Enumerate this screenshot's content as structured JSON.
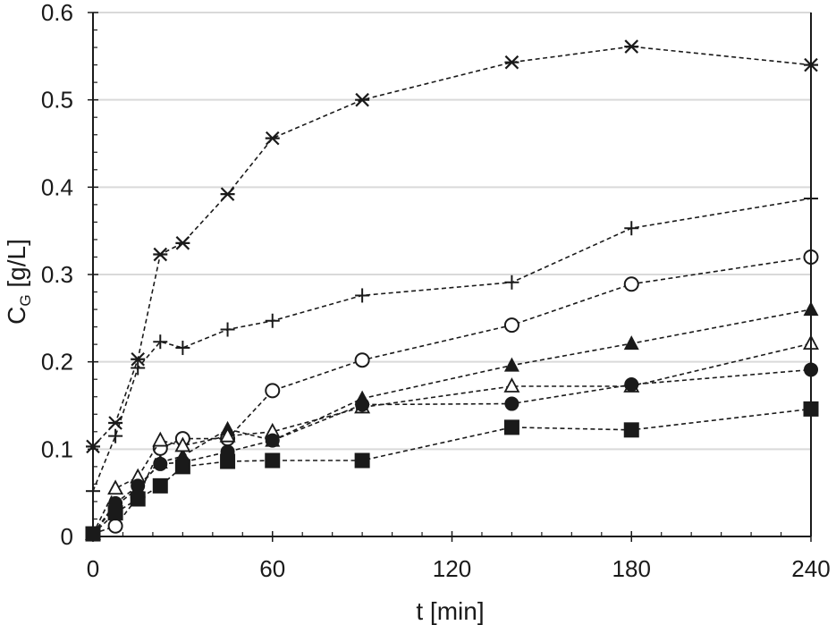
{
  "chart_data": {
    "type": "line",
    "title": "",
    "xlabel": "t [min]",
    "ylabel": {
      "main": "C",
      "sub": "G",
      "unit": " [g/L]"
    },
    "xlim": [
      0,
      240
    ],
    "ylim": [
      0,
      0.6
    ],
    "xticks": [
      0,
      60,
      120,
      180,
      240
    ],
    "xtick_labels": [
      "0",
      "60",
      "120",
      "180",
      "240"
    ],
    "yticks": [
      0,
      0.1,
      0.2,
      0.3,
      0.4,
      0.5,
      0.6
    ],
    "ytick_labels": [
      "0",
      "0.1",
      "0.2",
      "0.3",
      "0.4",
      "0.5",
      "0.6"
    ],
    "grid": "horizontal",
    "line_style": "dashed",
    "colors": {
      "line": "#1a1a1a",
      "grid": "#d9d9d9",
      "axis": "#1a1a1a"
    },
    "series": [
      {
        "name": "asterisk",
        "marker": "asterisk",
        "x": [
          0,
          7.5,
          15,
          22.5,
          30,
          45,
          60,
          90,
          140,
          180,
          240
        ],
        "y": [
          0.103,
          0.13,
          0.203,
          0.323,
          0.336,
          0.392,
          0.456,
          0.5,
          0.543,
          0.561,
          0.54
        ]
      },
      {
        "name": "plus",
        "marker": "plus",
        "x": [
          0,
          7.5,
          15,
          22.5,
          30,
          45,
          60,
          90,
          140,
          180,
          240
        ],
        "y": [
          0.052,
          0.115,
          0.193,
          0.223,
          0.216,
          0.237,
          0.247,
          0.276,
          0.291,
          0.353,
          0.387
        ]
      },
      {
        "name": "open circle",
        "marker": "circle-open",
        "x": [
          0,
          7.5,
          15,
          22.5,
          30,
          45,
          60,
          90,
          140,
          180,
          240
        ],
        "y": [
          0.003,
          0.012,
          0.045,
          0.101,
          0.112,
          0.112,
          0.167,
          0.202,
          0.242,
          0.289,
          0.32
        ]
      },
      {
        "name": "filled triangle",
        "marker": "triangle-filled",
        "x": [
          0,
          7.5,
          15,
          22.5,
          30,
          45,
          60,
          90,
          140,
          180,
          240
        ],
        "y": [
          0.003,
          0.035,
          0.055,
          0.085,
          0.092,
          0.123,
          0.11,
          0.158,
          0.196,
          0.221,
          0.26
        ]
      },
      {
        "name": "open triangle",
        "marker": "triangle-open",
        "x": [
          0,
          7.5,
          15,
          22.5,
          30,
          45,
          60,
          90,
          140,
          180,
          240
        ],
        "y": [
          0.003,
          0.055,
          0.068,
          0.11,
          0.104,
          0.115,
          0.12,
          0.148,
          0.172,
          0.172,
          0.221
        ]
      },
      {
        "name": "filled circle",
        "marker": "circle-filled",
        "x": [
          0,
          7.5,
          15,
          22.5,
          30,
          45,
          60,
          90,
          140,
          180,
          240
        ],
        "y": [
          0.003,
          0.038,
          0.058,
          0.083,
          0.085,
          0.097,
          0.11,
          0.151,
          0.152,
          0.174,
          0.191
        ]
      },
      {
        "name": "filled square",
        "marker": "square-filled",
        "x": [
          0,
          7.5,
          15,
          22.5,
          30,
          45,
          60,
          90,
          140,
          180,
          240
        ],
        "y": [
          0.003,
          0.027,
          0.043,
          0.058,
          0.08,
          0.086,
          0.087,
          0.087,
          0.125,
          0.122,
          0.146
        ]
      }
    ]
  }
}
